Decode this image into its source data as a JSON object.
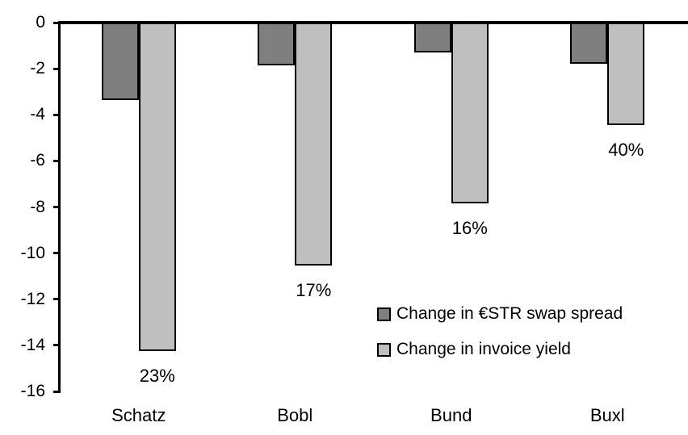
{
  "chart_data": {
    "type": "bar",
    "title": "",
    "xlabel": "",
    "ylabel": "",
    "categories": [
      "Schatz",
      "Bobl",
      "Bund",
      "Buxl"
    ],
    "series": [
      {
        "name": "Change in €STR swap spread",
        "color": "#7F7F7F",
        "values": [
          -3.3,
          -1.8,
          -1.25,
          -1.75
        ]
      },
      {
        "name": "Change in invoice yield",
        "color": "#BFBFBF",
        "values": [
          -14.2,
          -10.5,
          -7.8,
          -4.4
        ]
      }
    ],
    "bar_labels": {
      "series_index": 1,
      "values": [
        "23%",
        "17%",
        "16%",
        "40%"
      ]
    },
    "yticks": [
      0,
      -2,
      -4,
      -6,
      -8,
      -10,
      -12,
      -14,
      -16
    ],
    "ylim": [
      -16,
      0
    ],
    "grid": false,
    "legend_position": "inside-right",
    "axis_color": "#000000",
    "background_color": "#FFFFFF"
  }
}
